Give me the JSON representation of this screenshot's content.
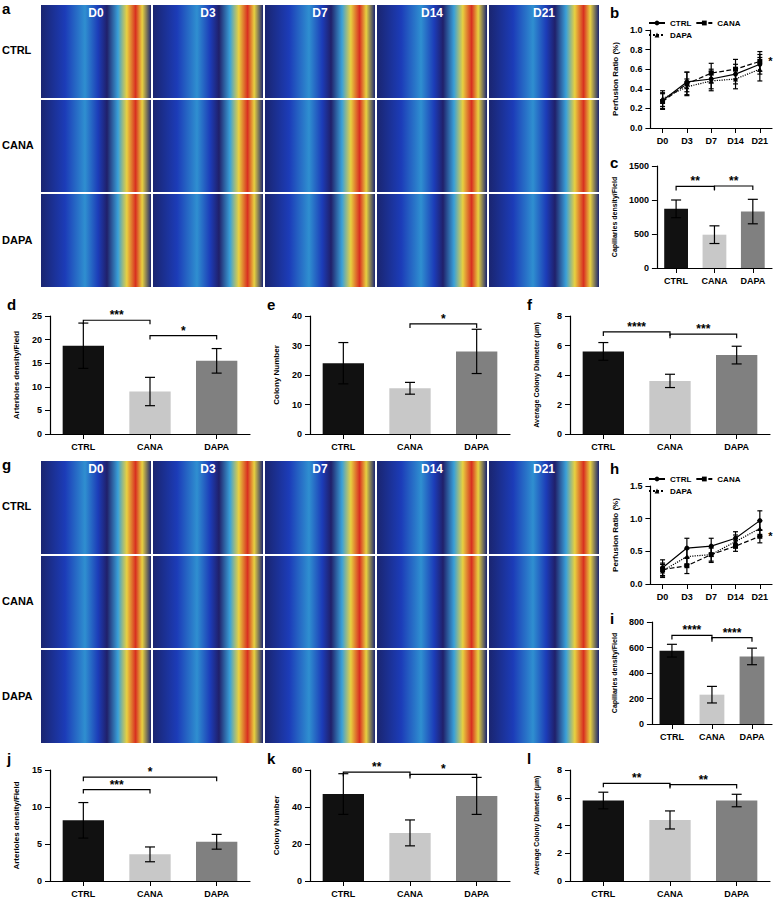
{
  "figure_panels": [
    {
      "panel": "a",
      "columns": [
        "D0",
        "D3",
        "D7",
        "D14",
        "D21"
      ],
      "rows": [
        "CTRL",
        "CANA",
        "DAPA"
      ]
    },
    {
      "panel": "g",
      "columns": [
        "D0",
        "D3",
        "D7",
        "D14",
        "D21"
      ],
      "rows": [
        "CTRL",
        "CANA",
        "DAPA"
      ]
    }
  ],
  "chart_data": [
    {
      "panel": "b",
      "type": "line",
      "y_label": "Perfusion Ratio (%)",
      "categories": [
        "D0",
        "D3",
        "D7",
        "D14",
        "D21"
      ],
      "ylim": [
        0,
        1
      ],
      "yticks": [
        {
          "value": 0,
          "label": "0.0"
        },
        {
          "value": 0.2,
          "label": "0.2"
        },
        {
          "value": 0.4,
          "label": "0.4"
        },
        {
          "value": 0.6,
          "label": "0.6"
        },
        {
          "value": 0.8,
          "label": "0.8"
        },
        {
          "value": 1,
          "label": "1.0"
        }
      ],
      "legend": "upper left",
      "series": [
        {
          "name": "CTRL",
          "color": "#000000",
          "marker": "circle",
          "line_style": "solid",
          "values": [
            0.28,
            0.47,
            0.5,
            0.55,
            0.65
          ],
          "errors": [
            0.08,
            0.1,
            0.1,
            0.1,
            0.1
          ]
        },
        {
          "name": "CANA",
          "color": "#000000",
          "marker": "square",
          "line_style": "dashed",
          "values": [
            0.27,
            0.45,
            0.56,
            0.6,
            0.68
          ],
          "errors": [
            0.08,
            0.12,
            0.1,
            0.1,
            0.1
          ]
        },
        {
          "name": "DAPA",
          "color": "#000000",
          "marker": "triangle",
          "line_style": "dotted",
          "values": [
            0.3,
            0.42,
            0.48,
            0.5,
            0.6
          ],
          "errors": [
            0.08,
            0.08,
            0.1,
            0.1,
            0.12
          ]
        }
      ],
      "point_annotations": [
        {
          "series": "CANA",
          "category": "D21",
          "text": "*"
        }
      ]
    },
    {
      "panel": "c",
      "type": "bar",
      "y_label": "Capillaries density/Field",
      "categories": [
        "CTRL",
        "CANA",
        "DAPA"
      ],
      "values": [
        870,
        490,
        830
      ],
      "errors": [
        130,
        130,
        180
      ],
      "colors": [
        "#111111",
        "#c8c8c8",
        "#808080"
      ],
      "ylim": [
        0,
        1500
      ],
      "yticks": [
        0,
        500,
        1000,
        1500
      ],
      "significance": [
        {
          "from": "CTRL",
          "to": "CANA",
          "label": "**"
        },
        {
          "from": "CANA",
          "to": "DAPA",
          "label": "**"
        }
      ]
    },
    {
      "panel": "d",
      "type": "bar",
      "y_label": "Arterioles density/Field",
      "categories": [
        "CTRL",
        "CANA",
        "DAPA"
      ],
      "values": [
        18.7,
        9,
        15.5
      ],
      "errors": [
        4.8,
        3,
        2.6
      ],
      "colors": [
        "#111111",
        "#c8c8c8",
        "#808080"
      ],
      "ylim": [
        0,
        25
      ],
      "yticks": [
        0,
        5,
        10,
        15,
        20,
        25
      ],
      "significance": [
        {
          "from": "CTRL",
          "to": "CANA",
          "label": "***"
        },
        {
          "from": "CANA",
          "to": "DAPA",
          "label": "*"
        }
      ]
    },
    {
      "panel": "e",
      "type": "bar",
      "y_label": "Colony Number",
      "categories": [
        "CTRL",
        "CANA",
        "DAPA"
      ],
      "values": [
        24,
        15.5,
        28
      ],
      "errors": [
        7,
        2,
        7.5
      ],
      "colors": [
        "#111111",
        "#c8c8c8",
        "#808080"
      ],
      "ylim": [
        0,
        40
      ],
      "yticks": [
        0,
        10,
        20,
        30,
        40
      ],
      "significance": [
        {
          "from": "CANA",
          "to": "DAPA",
          "label": "*"
        }
      ]
    },
    {
      "panel": "f",
      "type": "bar",
      "y_label": "Average Colony Diameter (μm)",
      "categories": [
        "CTRL",
        "CANA",
        "DAPA"
      ],
      "values": [
        5.6,
        3.6,
        5.35
      ],
      "errors": [
        0.6,
        0.45,
        0.6
      ],
      "colors": [
        "#111111",
        "#c8c8c8",
        "#808080"
      ],
      "ylim": [
        0,
        8
      ],
      "yticks": [
        0,
        2,
        4,
        6,
        8
      ],
      "significance": [
        {
          "from": "CTRL",
          "to": "CANA",
          "label": "****"
        },
        {
          "from": "CANA",
          "to": "DAPA",
          "label": "***"
        }
      ]
    },
    {
      "panel": "h",
      "type": "line",
      "y_label": "Perfusion Ratio (%)",
      "categories": [
        "D0",
        "D3",
        "D7",
        "D14",
        "D21"
      ],
      "ylim": [
        0,
        1.5
      ],
      "yticks": [
        {
          "value": 0,
          "label": "0.0"
        },
        {
          "value": 0.5,
          "label": "0.5"
        },
        {
          "value": 1,
          "label": "1.0"
        },
        {
          "value": 1.5,
          "label": "1.5"
        }
      ],
      "legend": "upper left",
      "series": [
        {
          "name": "CTRL",
          "color": "#000000",
          "marker": "circle",
          "line_style": "solid",
          "values": [
            0.25,
            0.55,
            0.58,
            0.7,
            0.97
          ],
          "errors": [
            0.12,
            0.15,
            0.12,
            0.1,
            0.15
          ]
        },
        {
          "name": "CANA",
          "color": "#000000",
          "marker": "square",
          "line_style": "dashed",
          "values": [
            0.22,
            0.28,
            0.45,
            0.58,
            0.73
          ],
          "errors": [
            0.1,
            0.12,
            0.1,
            0.08,
            0.1
          ]
        },
        {
          "name": "DAPA",
          "color": "#000000",
          "marker": "triangle",
          "line_style": "dotted",
          "values": [
            0.2,
            0.42,
            0.45,
            0.65,
            0.85
          ],
          "errors": [
            0.1,
            0.12,
            0.12,
            0.1,
            0.12
          ]
        }
      ],
      "point_annotations": [
        {
          "series": "CANA",
          "category": "D21",
          "text": "*"
        }
      ]
    },
    {
      "panel": "i",
      "type": "bar",
      "y_label": "Capillaries density/Field",
      "categories": [
        "CTRL",
        "CANA",
        "DAPA"
      ],
      "values": [
        575,
        230,
        530
      ],
      "errors": [
        50,
        65,
        65
      ],
      "colors": [
        "#111111",
        "#c8c8c8",
        "#808080"
      ],
      "ylim": [
        0,
        800
      ],
      "yticks": [
        0,
        200,
        400,
        600,
        800
      ],
      "significance": [
        {
          "from": "CTRL",
          "to": "CANA",
          "label": "****"
        },
        {
          "from": "CANA",
          "to": "DAPA",
          "label": "****"
        }
      ]
    },
    {
      "panel": "j",
      "type": "bar",
      "y_label": "Arterioles density/Field",
      "categories": [
        "CTRL",
        "CANA",
        "DAPA"
      ],
      "values": [
        8.2,
        3.6,
        5.3
      ],
      "errors": [
        2.4,
        1,
        1
      ],
      "colors": [
        "#111111",
        "#c8c8c8",
        "#808080"
      ],
      "ylim": [
        0,
        15
      ],
      "yticks": [
        0,
        5,
        10,
        15
      ],
      "significance": [
        {
          "from": "CTRL",
          "to": "CANA",
          "label": "***"
        },
        {
          "from": "CTRL",
          "to": "DAPA",
          "label": "*"
        }
      ]
    },
    {
      "panel": "k",
      "type": "bar",
      "y_label": "Colony Number",
      "categories": [
        "CTRL",
        "CANA",
        "DAPA"
      ],
      "values": [
        47,
        26,
        46
      ],
      "errors": [
        11,
        7,
        10
      ],
      "colors": [
        "#111111",
        "#c8c8c8",
        "#808080"
      ],
      "ylim": [
        0,
        60
      ],
      "yticks": [
        0,
        20,
        40,
        60
      ],
      "significance": [
        {
          "from": "CTRL",
          "to": "CANA",
          "label": "**"
        },
        {
          "from": "CANA",
          "to": "DAPA",
          "label": "*"
        }
      ]
    },
    {
      "panel": "l",
      "type": "bar",
      "y_label": "Average Colony Diameter (μm)",
      "categories": [
        "CTRL",
        "CANA",
        "DAPA"
      ],
      "values": [
        5.8,
        4.4,
        5.8
      ],
      "errors": [
        0.6,
        0.65,
        0.45
      ],
      "colors": [
        "#111111",
        "#c8c8c8",
        "#808080"
      ],
      "ylim": [
        0,
        8
      ],
      "yticks": [
        0,
        2,
        4,
        6,
        8
      ],
      "significance": [
        {
          "from": "CTRL",
          "to": "CANA",
          "label": "**"
        },
        {
          "from": "CANA",
          "to": "DAPA",
          "label": "**"
        }
      ]
    }
  ]
}
